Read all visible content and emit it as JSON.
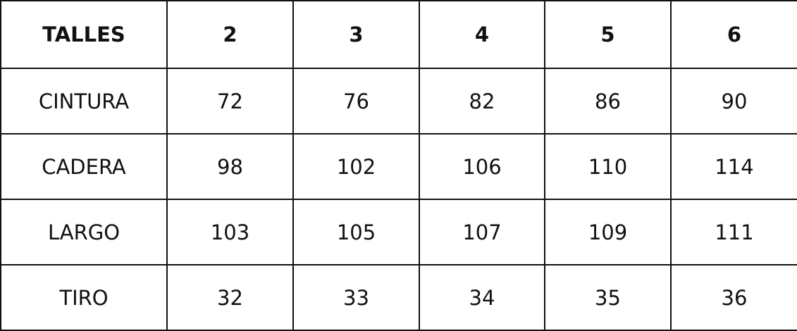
{
  "table": {
    "header": [
      "TALLES",
      "2",
      "3",
      "4",
      "5",
      "6"
    ],
    "rows": [
      {
        "label": "CINTURA",
        "values": [
          "72",
          "76",
          "82",
          "86",
          "90"
        ]
      },
      {
        "label": "CADERA",
        "values": [
          "98",
          "102",
          "106",
          "110",
          "114"
        ]
      },
      {
        "label": "LARGO",
        "values": [
          "103",
          "105",
          "107",
          "109",
          "111"
        ]
      },
      {
        "label": "TIRO",
        "values": [
          "32",
          "33",
          "34",
          "35",
          "36"
        ]
      }
    ]
  }
}
